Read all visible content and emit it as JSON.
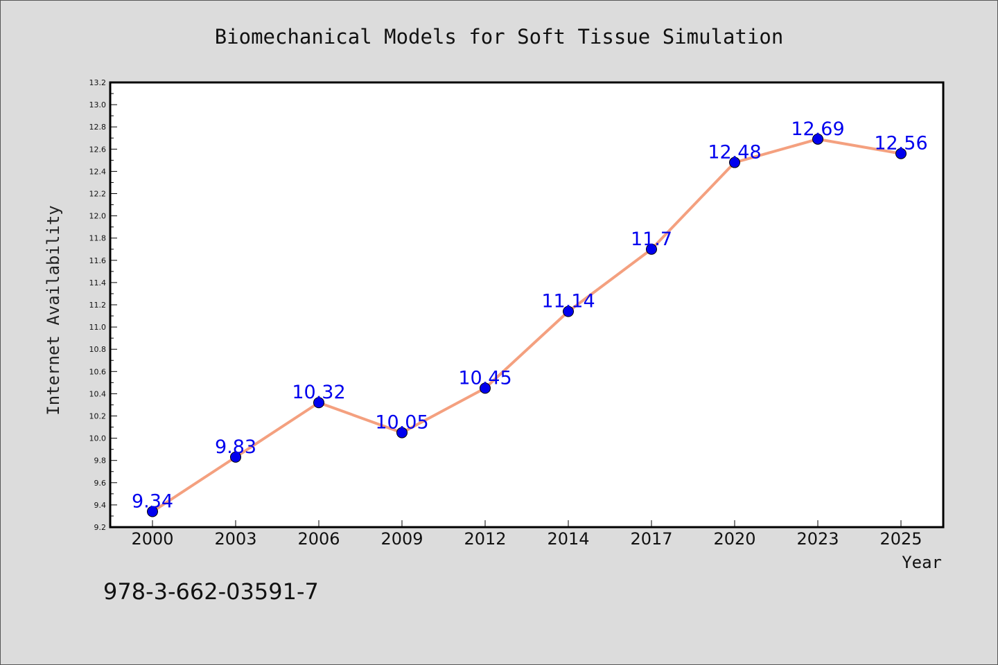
{
  "chart_data": {
    "type": "line",
    "title": "Biomechanical Models for Soft Tissue Simulation",
    "xlabel": "Year",
    "ylabel": "Internet Availability",
    "categories": [
      "2000",
      "2003",
      "2006",
      "2009",
      "2012",
      "2014",
      "2017",
      "2020",
      "2023",
      "2025"
    ],
    "series": [
      {
        "values": [
          9.34,
          9.83,
          10.32,
          10.05,
          10.45,
          11.14,
          11.7,
          12.48,
          12.69,
          12.56
        ],
        "line_color": "#f4a07f",
        "marker_color": "#0000ee",
        "label_color": "#0000ee"
      }
    ],
    "data_labels": [
      "9.34",
      "9.83",
      "10.32",
      "10.05",
      "10.45",
      "11.14",
      "11.7",
      "12.48",
      "12.69",
      "12.56"
    ],
    "ylim": [
      9.2,
      13.2
    ],
    "yticks": [
      "9.2",
      "9.4",
      "9.6",
      "9.8",
      "10.0",
      "10.2",
      "10.4",
      "10.6",
      "10.8",
      "11.0",
      "11.2",
      "11.4",
      "11.6",
      "11.8",
      "12.0",
      "12.2",
      "12.4",
      "12.6",
      "12.8",
      "13.0",
      "13.2"
    ],
    "grid": false,
    "legend": "none"
  },
  "footer_note": "978-3-662-03591-7"
}
